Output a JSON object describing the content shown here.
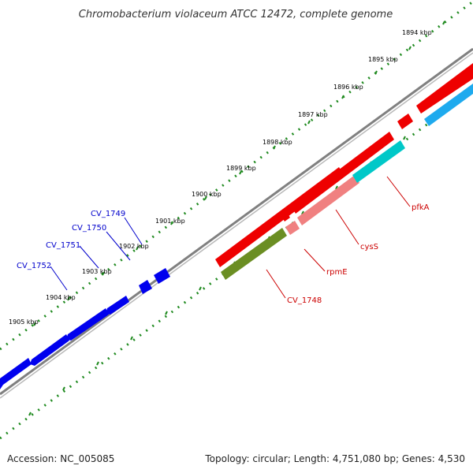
{
  "title": "Chromobacterium violaceum ATCC 12472, complete genome",
  "footer": {
    "accession": "Accession: NC_005085",
    "summary": "Topology: circular; Length: 4,751,080 bp; Genes: 4,530"
  },
  "colors": {
    "backbone": "#808080",
    "tick": "#1f8a1f",
    "label_red": "#cc0000",
    "label_blue": "#0000cc",
    "gene_blue": "#0000ee",
    "gene_red": "#ee0000",
    "gene_pink": "#f08080",
    "gene_cyan": "#00c8c8",
    "gene_skyblue": "#1eaaee",
    "gene_olive": "#6b8e23"
  },
  "kbp_labels": [
    "1894 kbp",
    "1895 kbp",
    "1896 kbp",
    "1897 kbp",
    "1898 kbp",
    "1899 kbp",
    "1900 kbp",
    "1901 kbp",
    "1902 kbp",
    "1903 kbp",
    "1904 kbp",
    "1905 kbp"
  ],
  "gene_labels": {
    "cv1749": "CV_1749",
    "cv1750": "CV_1750",
    "cv1751": "CV_1751",
    "cv1752": "CV_1752",
    "pfka": "pfkA",
    "cyss": "cysS",
    "rpme": "rpmE",
    "cv1748": "CV_1748"
  }
}
